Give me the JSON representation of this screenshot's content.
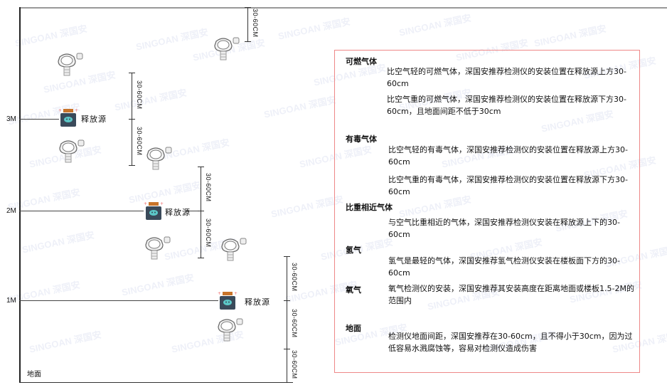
{
  "watermark": "SINGOAN 深国安",
  "levels": {
    "l3": "3M",
    "l2": "2M",
    "l1": "1M",
    "ground": "地面"
  },
  "source_label": "释放源",
  "dimension_label": "30-60CM",
  "legend": {
    "sections": [
      {
        "title": "可燃气体",
        "paras": [
          "比空气轻的可燃气体，深国安推荐检测仪的安装位置在释放源上方30-60cm",
          "比空气重的可燃气体，深国安推荐检测仪的安装位置在释放源下方30-60cm，且地面间距不低于30cm"
        ]
      },
      {
        "title": "有毒气体",
        "paras": [
          "比空气轻的有毒气体，深国安推荐检测仪的安装位置在释放源上方30-60cm",
          "比空气重的有毒气体，深国安推荐检测仪的安装位置在释放源下方30-60cm"
        ]
      },
      {
        "title": "比重相近气体",
        "paras": [
          "与空气比重相近的气体，深国安推荐检测仪安装在释放源上下的30-60cm"
        ]
      },
      {
        "title": "氢气",
        "paras": [
          "氢气是最轻的气体，深国安推荐氢气检测仪安装在楼板面下方的30-60cm"
        ]
      },
      {
        "title": "氧气",
        "paras": [
          "氧气检测仪的安装，深国安推荐其安装高度在距离地面或楼板1.5-2M的范围内"
        ]
      },
      {
        "title": "地面",
        "paras": [
          "检测仪地面间距，深国安推荐在30-60cm，且不得小于30cm，因为过低容易水溅腐蚀等，容易对检测仪造成伤害"
        ]
      }
    ]
  },
  "colors": {
    "border": "#e88888",
    "source_body": "#3a4a5a",
    "source_cap": "#c8742a",
    "source_face": "#5cc8c8"
  }
}
